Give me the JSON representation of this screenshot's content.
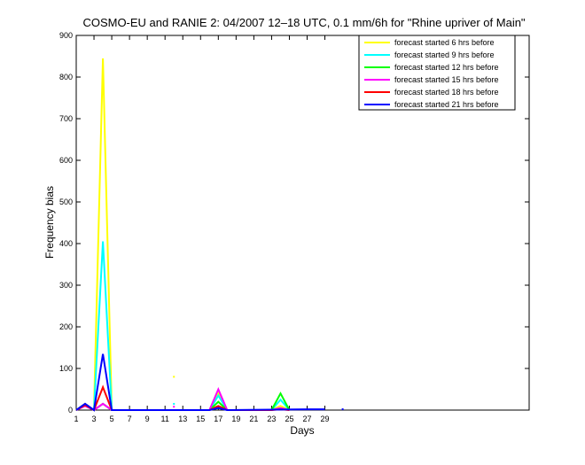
{
  "chart_data": {
    "type": "line",
    "title": "COSMO-EU and RANIE 2: 04/2007 12–18 UTC, 0.1 mm/6h for \"Rhine upriver of Main\"",
    "xlabel": "Days",
    "ylabel": "Frequency bias",
    "xlim": [
      1,
      52
    ],
    "ylim": [
      0,
      900
    ],
    "xticks": [
      1,
      3,
      5,
      7,
      9,
      11,
      13,
      15,
      17,
      19,
      21,
      23,
      25,
      27,
      29
    ],
    "yticks": [
      0,
      100,
      200,
      300,
      400,
      500,
      600,
      700,
      800,
      900
    ],
    "grid": false,
    "legend_position": "top-right",
    "series": [
      {
        "name": "forecast started 6 hrs before",
        "color": "#ffff00",
        "points": [
          [
            1,
            0
          ],
          [
            2,
            15
          ],
          [
            3,
            0
          ],
          [
            4,
            845
          ],
          [
            5,
            0
          ],
          [
            16,
            0
          ],
          [
            17,
            40
          ],
          [
            18,
            0
          ],
          [
            23,
            0
          ],
          [
            24,
            10
          ],
          [
            25,
            0
          ]
        ]
      },
      {
        "name": "forecast started 9 hrs before",
        "color": "#00ffff",
        "points": [
          [
            1,
            0
          ],
          [
            2,
            14
          ],
          [
            3,
            0
          ],
          [
            4,
            405
          ],
          [
            5,
            0
          ],
          [
            16,
            0
          ],
          [
            17,
            35
          ],
          [
            18,
            0
          ],
          [
            23,
            0
          ],
          [
            24,
            25
          ],
          [
            25,
            0
          ]
        ]
      },
      {
        "name": "forecast started 12 hrs before",
        "color": "#00ff00",
        "points": [
          [
            1,
            0
          ],
          [
            2,
            12
          ],
          [
            3,
            0
          ],
          [
            4,
            15
          ],
          [
            5,
            0
          ],
          [
            16,
            0
          ],
          [
            17,
            20
          ],
          [
            18,
            0
          ],
          [
            23,
            0
          ],
          [
            24,
            40
          ],
          [
            25,
            0
          ]
        ]
      },
      {
        "name": "forecast started 15 hrs before",
        "color": "#ff00ff",
        "points": [
          [
            1,
            0
          ],
          [
            2,
            10
          ],
          [
            3,
            0
          ],
          [
            4,
            15
          ],
          [
            5,
            0
          ],
          [
            16,
            0
          ],
          [
            17,
            50
          ],
          [
            18,
            0
          ],
          [
            23,
            0
          ],
          [
            24,
            5
          ],
          [
            25,
            0
          ]
        ]
      },
      {
        "name": "forecast started 18 hrs before",
        "color": "#ff0000",
        "points": [
          [
            1,
            0
          ],
          [
            2,
            12
          ],
          [
            3,
            0
          ],
          [
            4,
            55
          ],
          [
            5,
            0
          ],
          [
            16,
            0
          ],
          [
            17,
            10
          ],
          [
            18,
            0
          ],
          [
            23,
            0
          ],
          [
            24,
            2
          ],
          [
            25,
            0
          ]
        ]
      },
      {
        "name": "forecast started 21 hrs before",
        "color": "#0000ff",
        "points": [
          [
            1,
            0
          ],
          [
            2,
            15
          ],
          [
            3,
            0
          ],
          [
            4,
            135
          ],
          [
            5,
            0
          ],
          [
            16,
            0
          ],
          [
            17,
            5
          ],
          [
            18,
            0
          ],
          [
            27,
            2
          ],
          [
            29,
            2
          ]
        ]
      }
    ],
    "isolated_points": [
      {
        "x": 12,
        "y": 80,
        "color": "#ffff00"
      },
      {
        "x": 12,
        "y": 15,
        "color": "#00ffff"
      },
      {
        "x": 12,
        "y": 8,
        "color": "#ff00ff"
      },
      {
        "x": 31,
        "y": 2,
        "color": "#0000ff"
      }
    ]
  }
}
